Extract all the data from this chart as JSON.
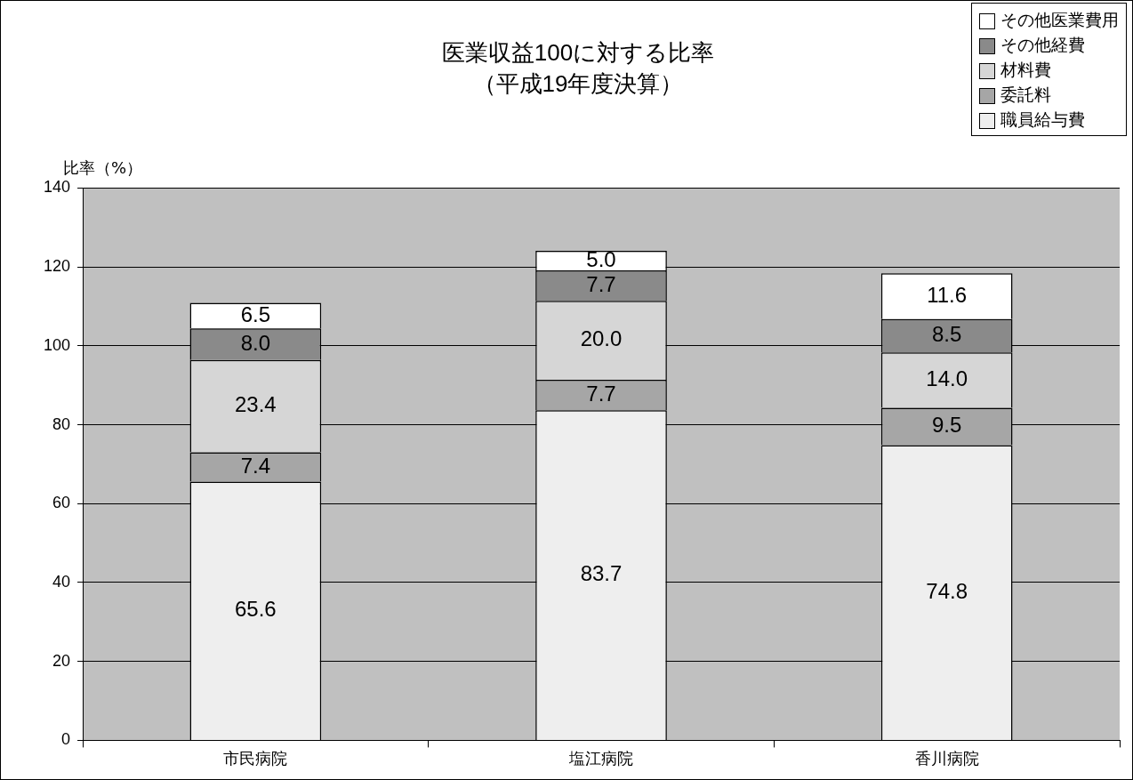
{
  "chart_data": {
    "type": "bar",
    "title": "医業収益100に対する比率",
    "subtitle": "（平成19年度決算）",
    "ylabel": "比率（%）",
    "categories": [
      "市民病院",
      "塩江病院",
      "香川病院"
    ],
    "stacked": true,
    "grid": "y",
    "legend": "top right",
    "ylim": [
      0,
      140
    ],
    "yticks": [
      0,
      20,
      40,
      60,
      80,
      100,
      120,
      140
    ],
    "series": [
      {
        "name": "職員給与費",
        "color": "#eeeeee",
        "values": [
          65.6,
          83.7,
          74.8
        ],
        "value_labels": [
          "65.6",
          "83.7",
          "74.8"
        ]
      },
      {
        "name": "委託料",
        "color": "#a6a6a6",
        "values": [
          7.4,
          7.7,
          9.5
        ],
        "value_labels": [
          "7.4",
          "7.7",
          "9.5"
        ]
      },
      {
        "name": "材料費",
        "color": "#d6d6d6",
        "values": [
          23.4,
          20.0,
          14.0
        ],
        "value_labels": [
          "23.4",
          "20.0",
          "14.0"
        ]
      },
      {
        "name": "その他経費",
        "color": "#8a8a8a",
        "values": [
          8.0,
          7.7,
          8.5
        ],
        "value_labels": [
          "8.0",
          "7.7",
          "8.5"
        ]
      },
      {
        "name": "その他医業費用",
        "color": "#ffffff",
        "values": [
          6.5,
          5.0,
          11.6
        ],
        "value_labels": [
          "6.5",
          "5.0",
          "11.6"
        ]
      }
    ]
  }
}
